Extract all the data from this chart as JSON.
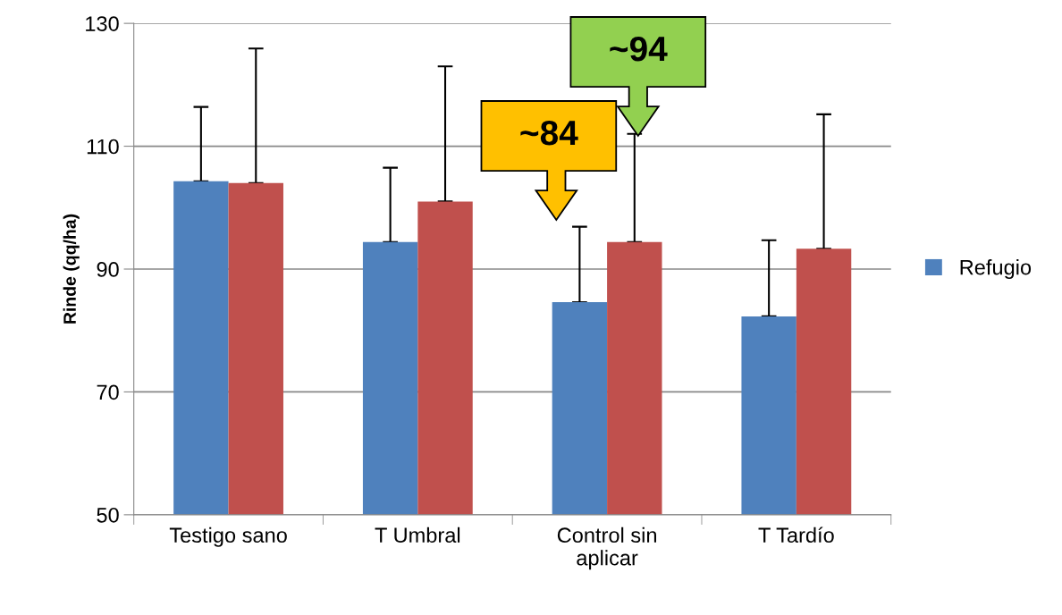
{
  "chart_data": {
    "type": "bar",
    "ylabel": "Rinde (qq/ha)",
    "categories": [
      "Testigo sano",
      "T Umbral",
      "Control sin\naplicar",
      "T Tardío"
    ],
    "series": [
      {
        "name": "Refugio",
        "color": "#4f81bd",
        "values": [
          104.3,
          94.4,
          84.6,
          82.3
        ],
        "errors": [
          [
            104.3,
            116.4
          ],
          [
            94.4,
            106.5
          ],
          [
            84.6,
            96.9
          ],
          [
            82.3,
            94.7
          ]
        ]
      },
      {
        "color": "#c0504d",
        "values": [
          104.0,
          101.0,
          94.4,
          93.3
        ],
        "errors": [
          [
            104.0,
            125.9
          ],
          [
            101.0,
            123.0
          ],
          [
            94.4,
            112.0
          ],
          [
            93.3,
            115.2
          ]
        ]
      }
    ],
    "ylim": [
      50,
      130
    ],
    "yticks": [
      50,
      70,
      90,
      110,
      130
    ],
    "grid": "y",
    "legend": "right",
    "annotations": [
      "~84",
      "~94"
    ]
  }
}
